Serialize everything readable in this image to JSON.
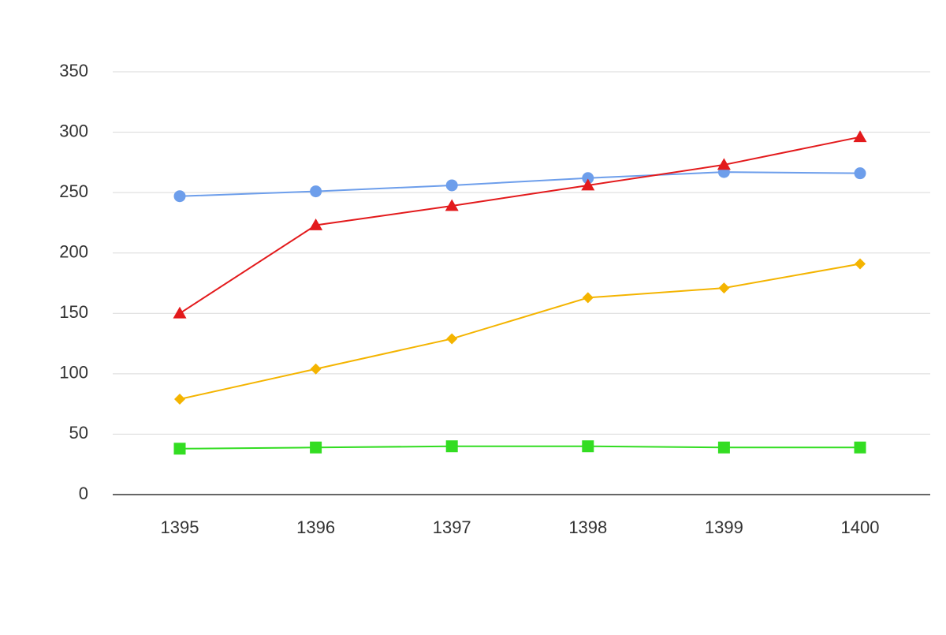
{
  "chart_data": {
    "type": "line",
    "title": "",
    "xlabel": "",
    "ylabel": "",
    "categories": [
      "1395",
      "1396",
      "1397",
      "1398",
      "1399",
      "1400"
    ],
    "ylim": [
      0,
      350
    ],
    "yticks": [
      0,
      50,
      100,
      150,
      200,
      250,
      300,
      350
    ],
    "grid": true,
    "legend": "none",
    "series": [
      {
        "color": "#6d9eeb",
        "marker": "circle",
        "values": [
          247,
          251,
          256,
          262,
          267,
          266
        ]
      },
      {
        "color": "#e31a1c",
        "marker": "triangle",
        "values": [
          150,
          223,
          239,
          256,
          273,
          296
        ]
      },
      {
        "color": "#f4b400",
        "marker": "diamond",
        "values": [
          79,
          104,
          129,
          163,
          171,
          191
        ]
      },
      {
        "color": "#33dd22",
        "marker": "square",
        "values": [
          38,
          39,
          40,
          40,
          39,
          39
        ]
      }
    ]
  }
}
